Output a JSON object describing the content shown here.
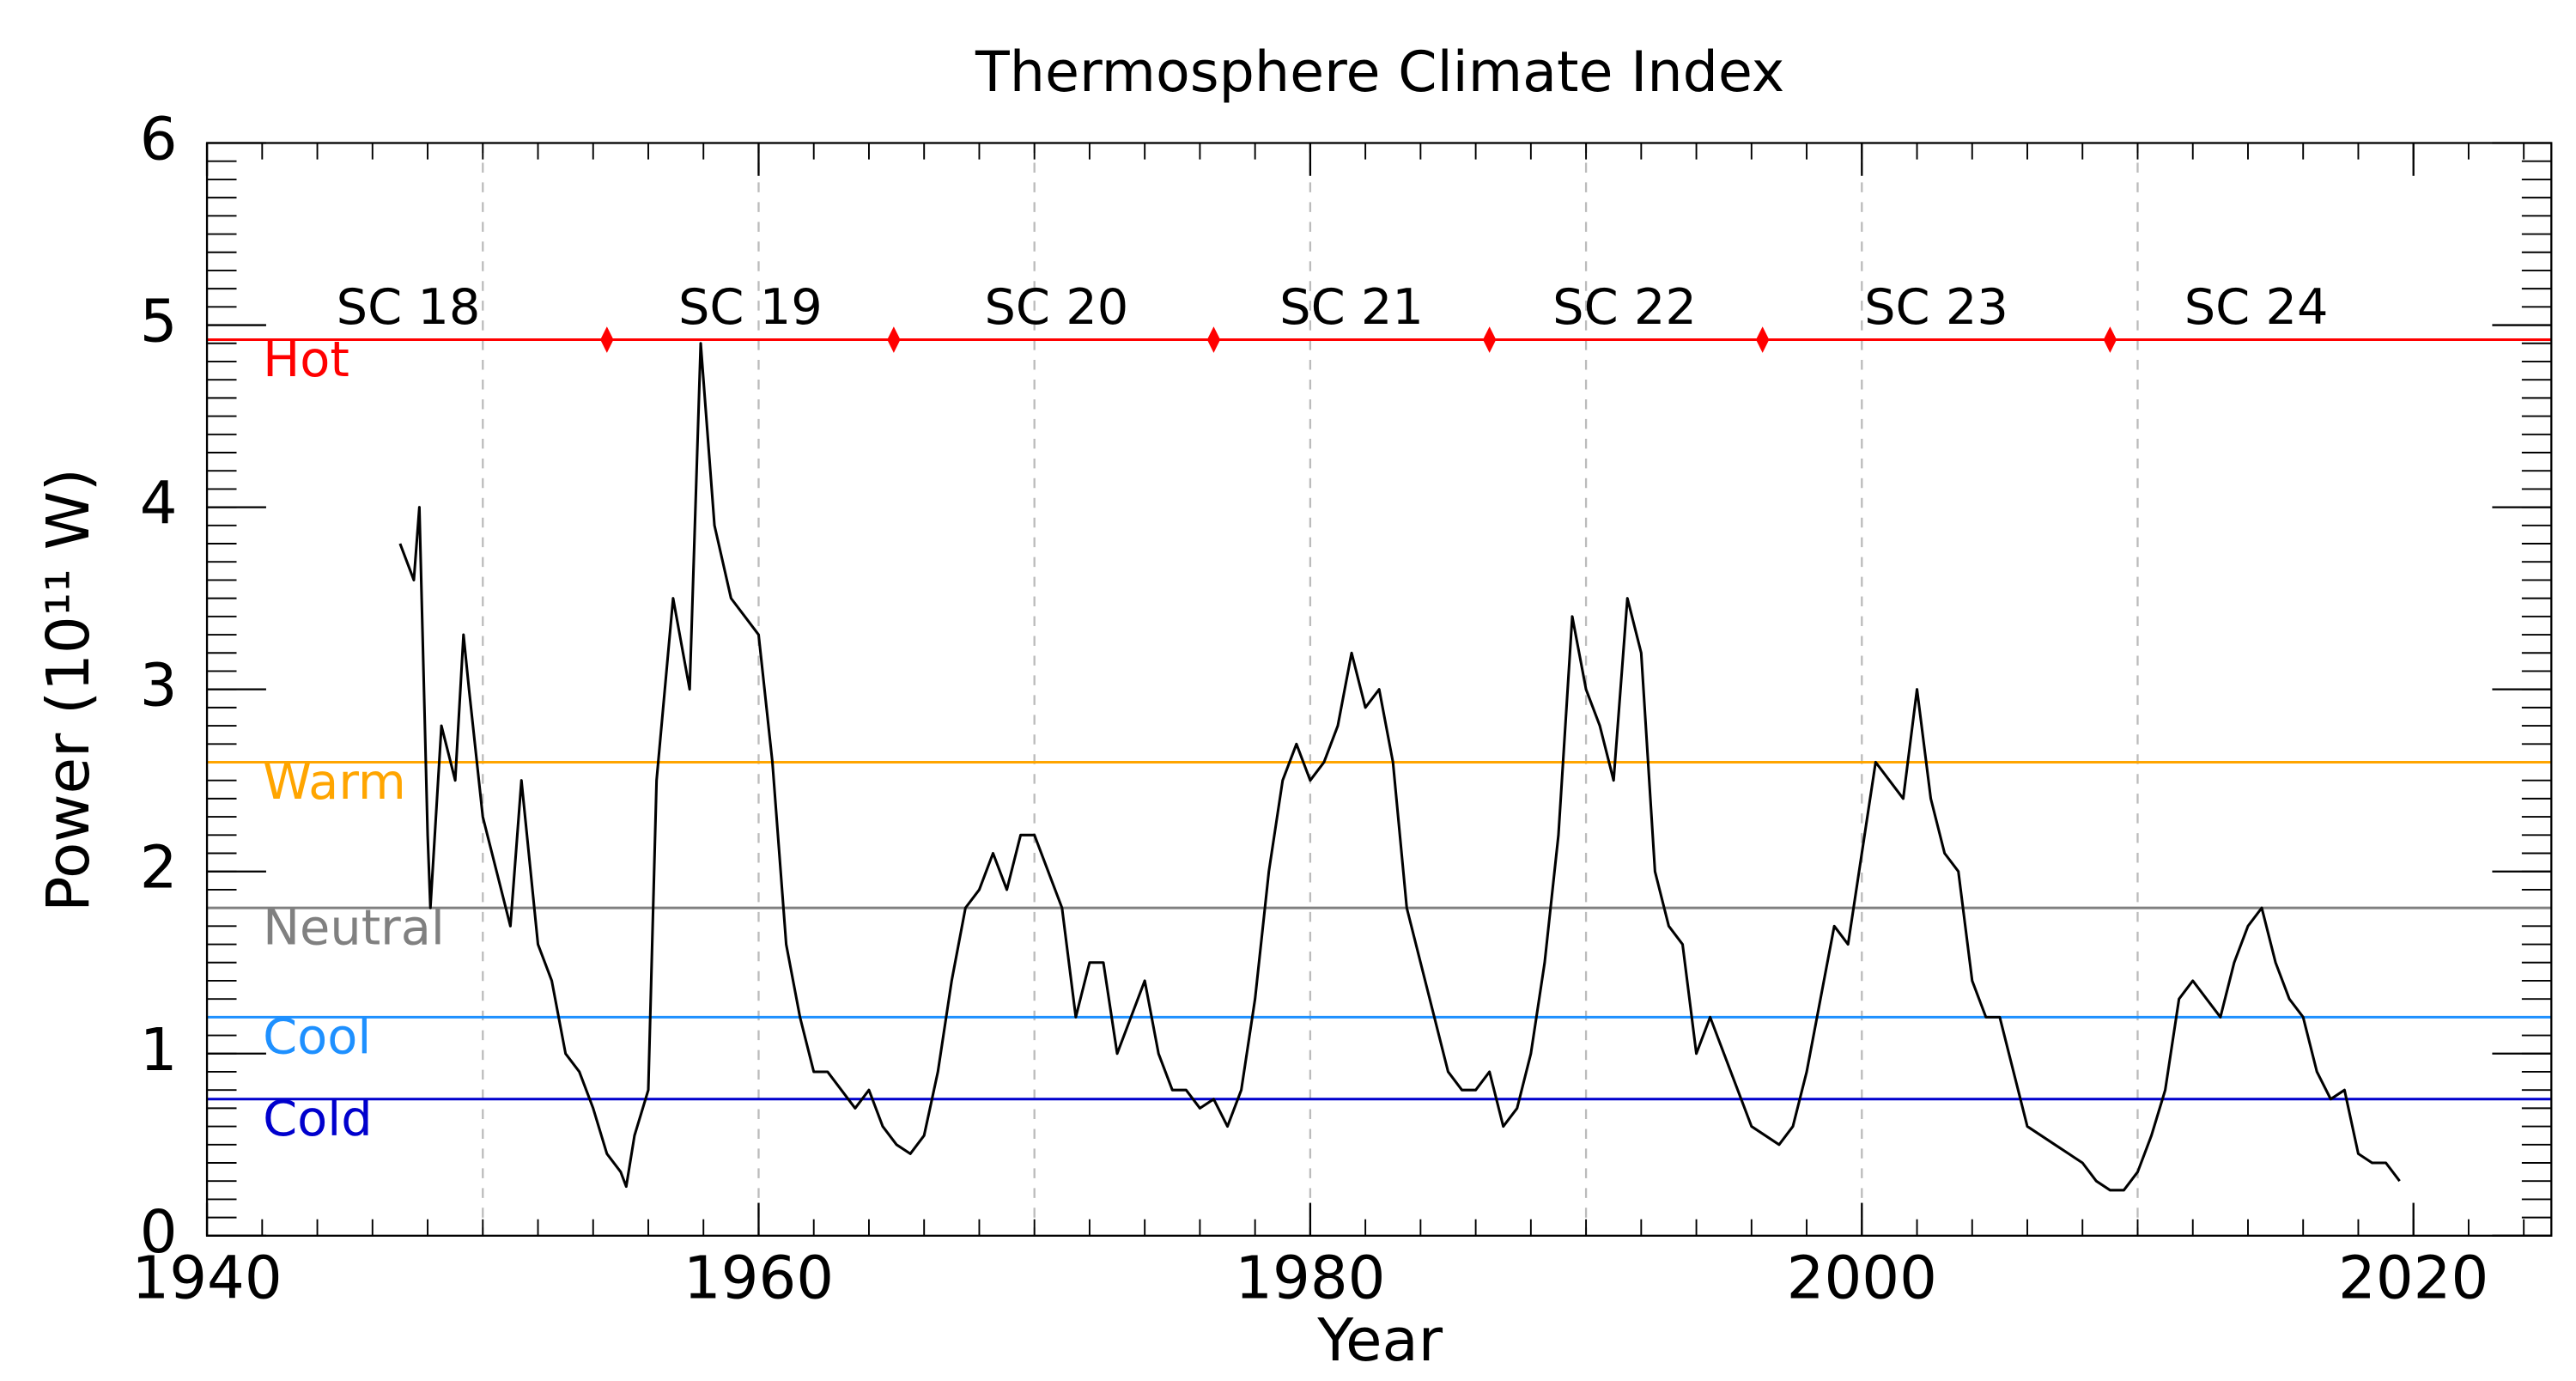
{
  "chart_data": {
    "type": "line",
    "title": "Thermosphere Climate Index",
    "x_label": "Year",
    "y_label": "Power (10¹¹ W)",
    "xlim": [
      1940,
      2025
    ],
    "xticks": [
      1940,
      1960,
      1980,
      2000,
      2020
    ],
    "x_minor_step": 2,
    "ylim": [
      0,
      6
    ],
    "yticks": [
      0,
      1,
      2,
      3,
      4,
      5,
      6
    ],
    "y_minor_step": 0.1,
    "x_grid": [
      1950,
      1960,
      1970,
      1980,
      1990,
      2000,
      2010
    ],
    "levels": [
      {
        "name": "Hot",
        "value": 4.92,
        "color": "#ff0000"
      },
      {
        "name": "Warm",
        "value": 2.6,
        "color": "#ffa500"
      },
      {
        "name": "Neutral",
        "value": 1.8,
        "color": "#808080"
      },
      {
        "name": "Cool",
        "value": 1.2,
        "color": "#1e90ff"
      },
      {
        "name": "Cold",
        "value": 0.75,
        "color": "#0000cd"
      }
    ],
    "minima": [
      1954.5,
      1964.9,
      1976.5,
      1986.5,
      1996.4,
      2009.0
    ],
    "cycles": [
      {
        "label": "SC 18",
        "x": 1947.3
      },
      {
        "label": "SC 19",
        "x": 1959.7
      },
      {
        "label": "SC 20",
        "x": 1970.8
      },
      {
        "label": "SC 21",
        "x": 1981.5
      },
      {
        "label": "SC 22",
        "x": 1991.4
      },
      {
        "label": "SC 23",
        "x": 2002.7
      },
      {
        "label": "SC 24",
        "x": 2014.3
      }
    ],
    "cycle_label_y": 5.08,
    "x": [
      1947.0,
      1947.5,
      1947.7,
      1948.0,
      1948.1,
      1948.5,
      1949.0,
      1949.3,
      1949.5,
      1950.0,
      1950.5,
      1951.0,
      1951.4,
      1952.0,
      1952.5,
      1953.0,
      1953.5,
      1954.0,
      1954.5,
      1955.0,
      1955.2,
      1955.5,
      1956.0,
      1956.3,
      1956.9,
      1957.5,
      1957.9,
      1958.4,
      1959.0,
      1959.5,
      1960.0,
      1960.5,
      1961.0,
      1961.5,
      1962.0,
      1962.5,
      1963.0,
      1963.5,
      1964.0,
      1964.5,
      1965.0,
      1965.5,
      1966.0,
      1966.5,
      1967.0,
      1967.5,
      1968.0,
      1968.5,
      1969.0,
      1969.5,
      1970.0,
      1970.5,
      1971.0,
      1971.5,
      1972.0,
      1972.5,
      1973.0,
      1973.5,
      1974.0,
      1974.5,
      1975.0,
      1975.5,
      1976.0,
      1976.5,
      1977.0,
      1977.5,
      1978.0,
      1978.5,
      1979.0,
      1979.5,
      1980.0,
      1980.5,
      1981.0,
      1981.5,
      1982.0,
      1982.5,
      1983.0,
      1983.5,
      1984.0,
      1984.5,
      1985.0,
      1985.5,
      1986.0,
      1986.5,
      1987.0,
      1987.5,
      1988.0,
      1988.5,
      1989.0,
      1989.5,
      1990.0,
      1990.5,
      1991.0,
      1991.5,
      1992.0,
      1992.5,
      1993.0,
      1993.5,
      1994.0,
      1994.5,
      1995.0,
      1995.5,
      1996.0,
      1996.5,
      1997.0,
      1997.5,
      1998.0,
      1998.5,
      1999.0,
      1999.5,
      2000.0,
      2000.5,
      2001.0,
      2001.5,
      2002.0,
      2002.5,
      2003.0,
      2003.5,
      2004.0,
      2004.5,
      2005.0,
      2005.5,
      2006.0,
      2006.5,
      2007.0,
      2007.5,
      2008.0,
      2008.5,
      2009.0,
      2009.5,
      2010.0,
      2010.5,
      2011.0,
      2011.5,
      2012.0,
      2012.5,
      2013.0,
      2013.5,
      2014.0,
      2014.5,
      2015.0,
      2015.5,
      2016.0,
      2016.5,
      2017.0,
      2017.5,
      2018.0,
      2018.5,
      2019.0,
      2019.5
    ],
    "series": [
      {
        "color": "#000000",
        "values": [
          3.8,
          3.6,
          4.0,
          2.2,
          1.8,
          2.8,
          2.5,
          3.3,
          3.0,
          2.3,
          2.0,
          1.7,
          2.5,
          1.6,
          1.4,
          1.0,
          0.9,
          0.7,
          0.45,
          0.35,
          0.27,
          0.55,
          0.8,
          2.5,
          3.5,
          3.0,
          4.9,
          3.9,
          3.5,
          3.4,
          3.3,
          2.6,
          1.6,
          1.2,
          0.9,
          0.9,
          0.8,
          0.7,
          0.8,
          0.6,
          0.5,
          0.45,
          0.55,
          0.9,
          1.4,
          1.8,
          1.9,
          2.1,
          1.9,
          2.2,
          2.2,
          2.0,
          1.8,
          1.2,
          1.5,
          1.5,
          1.0,
          1.2,
          1.4,
          1.0,
          0.8,
          0.8,
          0.7,
          0.75,
          0.6,
          0.8,
          1.3,
          2.0,
          2.5,
          2.7,
          2.5,
          2.6,
          2.8,
          3.2,
          2.9,
          3.0,
          2.6,
          1.8,
          1.5,
          1.2,
          0.9,
          0.8,
          0.8,
          0.9,
          0.6,
          0.7,
          1.0,
          1.5,
          2.2,
          3.4,
          3.0,
          2.8,
          2.5,
          3.5,
          3.2,
          2.0,
          1.7,
          1.6,
          1.0,
          1.2,
          1.0,
          0.8,
          0.6,
          0.55,
          0.5,
          0.6,
          0.9,
          1.3,
          1.7,
          1.6,
          2.1,
          2.6,
          2.5,
          2.4,
          3.0,
          2.4,
          2.1,
          2.0,
          1.4,
          1.2,
          1.2,
          0.9,
          0.6,
          0.55,
          0.5,
          0.45,
          0.4,
          0.3,
          0.25,
          0.25,
          0.35,
          0.55,
          0.8,
          1.3,
          1.4,
          1.3,
          1.2,
          1.5,
          1.7,
          1.8,
          1.5,
          1.3,
          1.2,
          0.9,
          0.75,
          0.8,
          0.45,
          0.4,
          0.4,
          0.3
        ]
      }
    ]
  }
}
